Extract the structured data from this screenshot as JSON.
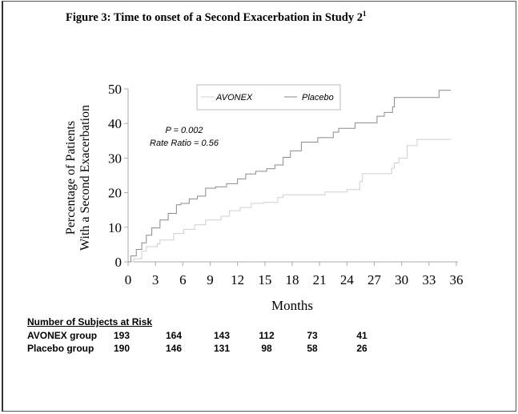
{
  "title": "Figure 3: Time to onset of a Second Exacerbation in Study 2",
  "title_superscript": "1",
  "chart_data": {
    "type": "line",
    "step": true,
    "xlabel": "Months",
    "ylabel_lines": [
      "Percentage of Patients",
      "With a Second Exacerbation"
    ],
    "xlim": [
      0,
      36
    ],
    "ylim": [
      0,
      50
    ],
    "xticks": [
      0,
      3,
      6,
      9,
      12,
      15,
      18,
      21,
      24,
      27,
      30,
      33,
      36
    ],
    "yticks": [
      0,
      10,
      20,
      30,
      40,
      50
    ],
    "grid": false,
    "legend_placement": "top-center",
    "annotations": [
      "P = 0.002",
      "Rate Ratio = 0.56"
    ],
    "series": [
      {
        "name": "AVONEX",
        "color": "#cfcfcf",
        "x": [
          0,
          0.6,
          1.5,
          2.0,
          3.2,
          3.5,
          5.0,
          6.1,
          7.3,
          8.5,
          10.2,
          11.1,
          12.3,
          13.5,
          14.9,
          16.4,
          17.0,
          21.6,
          24.0,
          25.4,
          25.7,
          28.9,
          29.2,
          29.7,
          30.6,
          31.7,
          35.4
        ],
        "y": [
          0,
          0.9,
          3.1,
          4.4,
          5.2,
          6.3,
          8.2,
          9.4,
          10.7,
          12.1,
          13.2,
          14.8,
          15.7,
          16.9,
          17.2,
          18.6,
          19.4,
          20.2,
          20.9,
          23.2,
          25.5,
          27.1,
          28.6,
          30.0,
          33.6,
          35.4,
          35.4
        ]
      },
      {
        "name": "Placebo",
        "color": "#8a8a8a",
        "x": [
          0,
          0.3,
          0.9,
          1.5,
          2.0,
          2.6,
          3.5,
          4.4,
          5.3,
          5.8,
          6.7,
          7.6,
          8.5,
          9.6,
          10.8,
          12.0,
          12.9,
          14.0,
          15.2,
          16.1,
          17.0,
          17.8,
          19.0,
          20.8,
          22.5,
          23.1,
          24.9,
          27.3,
          28.1,
          29.0,
          29.2,
          34.1,
          35.4
        ],
        "y": [
          0,
          1.7,
          3.6,
          5.5,
          7.7,
          9.8,
          12.1,
          14.0,
          16.5,
          16.9,
          18.2,
          19.0,
          21.3,
          21.7,
          22.6,
          24.0,
          25.4,
          26.2,
          26.9,
          28.0,
          30.2,
          32.1,
          34.6,
          35.9,
          37.5,
          38.6,
          40.2,
          42.1,
          43.2,
          44.8,
          47.5,
          49.6,
          49.6
        ]
      }
    ]
  },
  "risk_table": {
    "header": "Number of Subjects at Risk",
    "rows": [
      {
        "label": "AVONEX group",
        "values": [
          "193",
          "164",
          "143",
          "112",
          "73",
          "41"
        ]
      },
      {
        "label": "Placebo group",
        "values": [
          "190",
          "146",
          "131",
          "98",
          "58",
          "26"
        ]
      }
    ]
  }
}
